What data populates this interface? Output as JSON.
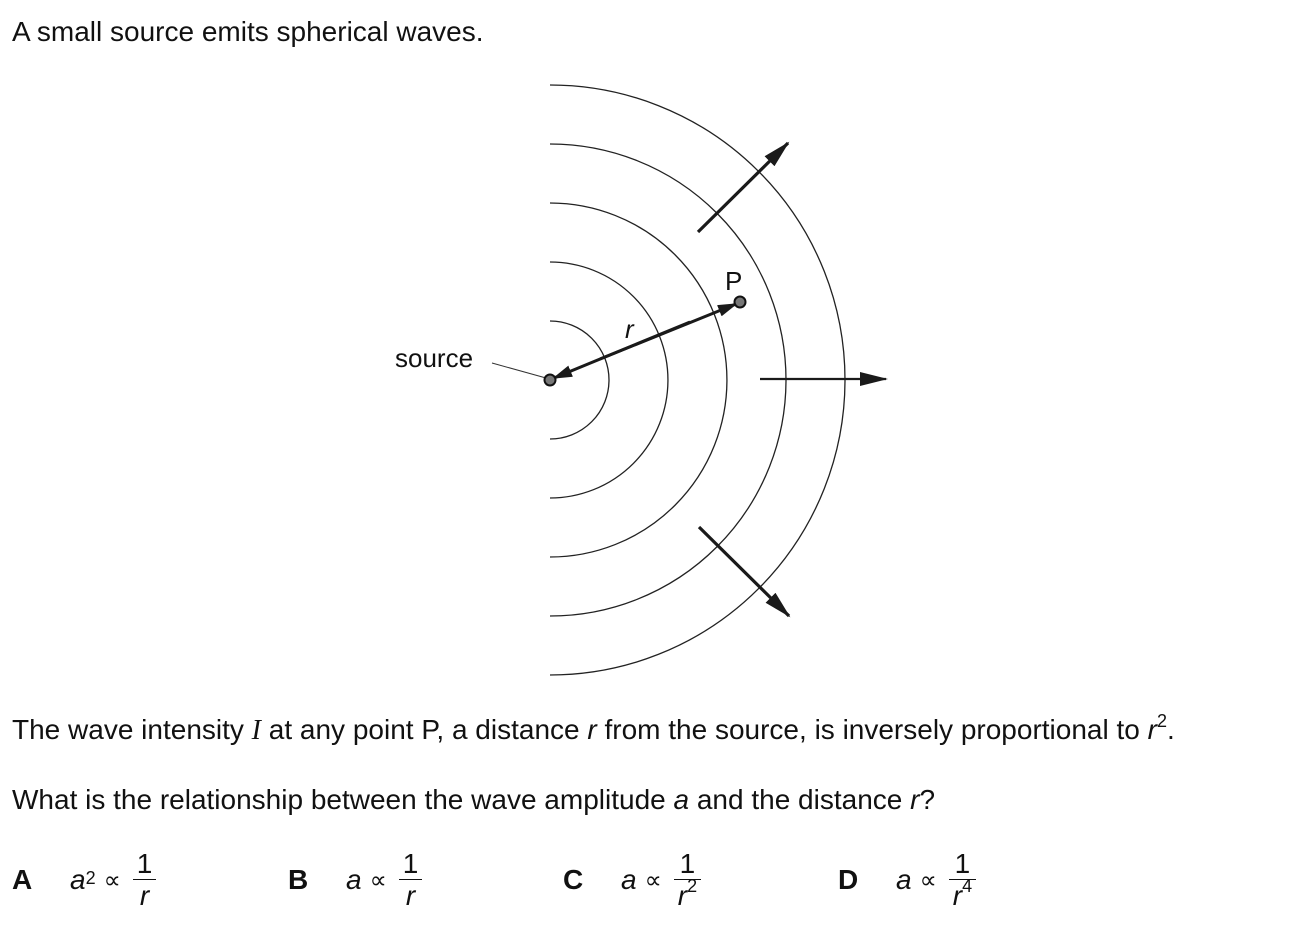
{
  "intro": "A small source emits spherical waves.",
  "diagram": {
    "source_label": "source",
    "point_label": "P",
    "distance_label": "r"
  },
  "question": {
    "line1_part1": "The wave intensity ",
    "line1_symbol": "I",
    "line1_part2": " at any point P, a distance ",
    "line1_var": "r",
    "line1_part3": " from the source, is inversely proportional to ",
    "line1_var2": "r",
    "line1_exp": "2",
    "line1_end": ".",
    "line2_part1": "What is the relationship between the wave amplitude ",
    "line2_var_a": "a",
    "line2_part2": " and the distance ",
    "line2_var_r": "r",
    "line2_end": "?"
  },
  "options": [
    {
      "letter": "A",
      "lhs_var": "a",
      "lhs_exp": "2",
      "symbol": "∝",
      "numerator": "1",
      "den_var": "r",
      "den_exp": ""
    },
    {
      "letter": "B",
      "lhs_var": "a",
      "lhs_exp": "",
      "symbol": "∝",
      "numerator": "1",
      "den_var": "r",
      "den_exp": ""
    },
    {
      "letter": "C",
      "lhs_var": "a",
      "lhs_exp": "",
      "symbol": "∝",
      "numerator": "1",
      "den_var": "r",
      "den_exp": "2"
    },
    {
      "letter": "D",
      "lhs_var": "a",
      "lhs_exp": "",
      "symbol": "∝",
      "numerator": "1",
      "den_var": "r",
      "den_exp": "4"
    }
  ]
}
